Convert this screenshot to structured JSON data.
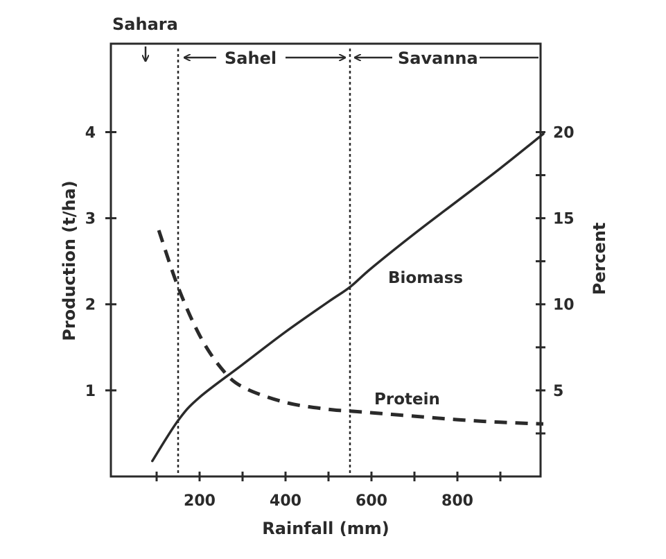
{
  "chart_data": {
    "type": "line",
    "xlabel": "Rainfall (mm)",
    "ylabel_left": "Production (t/ha)",
    "ylabel_right": "Percent",
    "xlim": [
      0,
      1000
    ],
    "ylim_left": [
      0,
      4.0
    ],
    "ylim_right": [
      0,
      20
    ],
    "x_ticks": [
      200,
      400,
      600,
      800
    ],
    "y_left_ticks": [
      1,
      2,
      3,
      4
    ],
    "y_right_ticks": [
      5,
      10,
      15,
      20
    ],
    "series": [
      {
        "name": "Biomass",
        "axis": "left",
        "style": "solid",
        "x": [
          90,
          150,
          200,
          300,
          400,
          500,
          550,
          600,
          700,
          800,
          900,
          1000
        ],
        "y": [
          0.18,
          0.65,
          0.92,
          1.3,
          1.68,
          2.03,
          2.2,
          2.42,
          2.82,
          3.2,
          3.58,
          3.98
        ]
      },
      {
        "name": "Protein",
        "axis": "right",
        "style": "dashed",
        "x": [
          105,
          150,
          200,
          250,
          300,
          400,
          500,
          550,
          600,
          700,
          800,
          900,
          1000
        ],
        "y": [
          14.3,
          11.0,
          8.2,
          6.3,
          5.2,
          4.3,
          3.9,
          3.8,
          3.7,
          3.5,
          3.3,
          3.15,
          3.05
        ]
      }
    ],
    "zones": [
      {
        "name": "Sahara",
        "x_start": 0,
        "x_end": 150
      },
      {
        "name": "Sahel",
        "x_start": 150,
        "x_end": 550
      },
      {
        "name": "Savanna",
        "x_start": 550,
        "x_end": 1000
      }
    ],
    "zone_boundaries": [
      150,
      550
    ],
    "grid": false,
    "legend": "none"
  }
}
